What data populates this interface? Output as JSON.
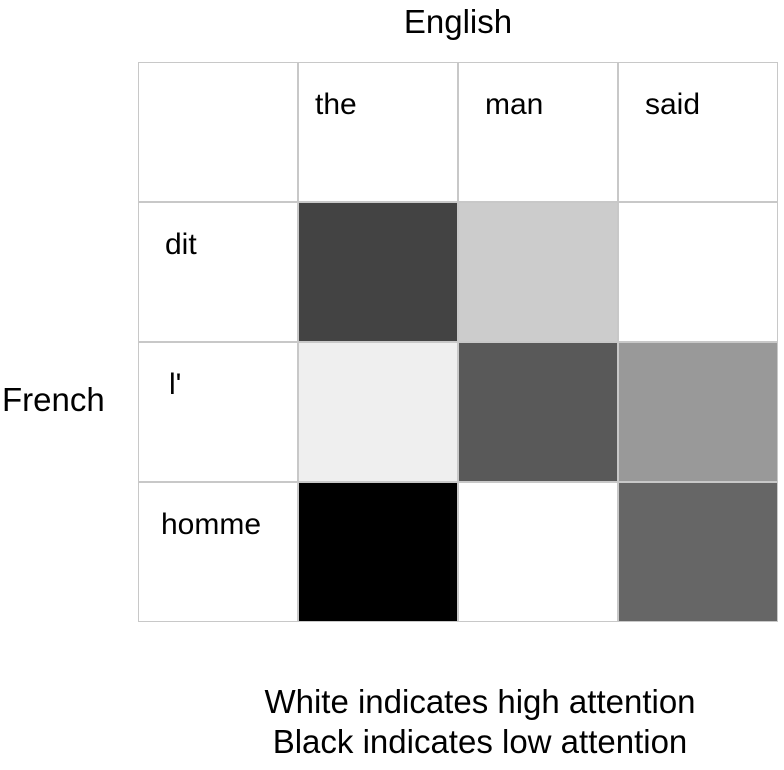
{
  "x_axis_label": "English",
  "y_axis_label": "French",
  "columns": [
    "the",
    "man",
    "said"
  ],
  "rows": [
    "dit",
    "l'",
    "homme"
  ],
  "attention_gray": [
    [
      "#434343",
      "#cccccc",
      "#ffffff"
    ],
    [
      "#efefef",
      "#595959",
      "#999999"
    ],
    [
      "#000000",
      "#ffffff",
      "#666666"
    ]
  ],
  "caption": {
    "line1": "White indicates high attention",
    "line2": "Black indicates low attention"
  }
}
